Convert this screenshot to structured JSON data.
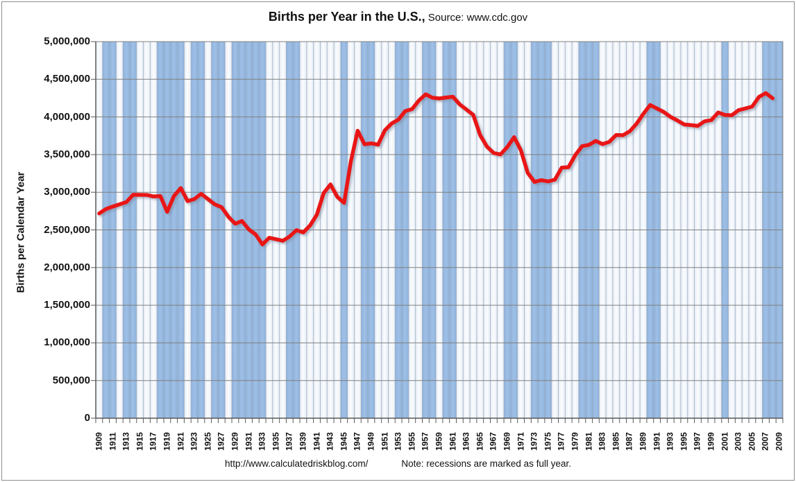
{
  "title": {
    "main": "Births per Year in the U.S.,",
    "source": " Source: www.cdc.gov"
  },
  "y_axis": {
    "title": "Births per Calendar Year",
    "tick_labels": [
      "5,000,000",
      "4,500,000",
      "4,000,000",
      "3,500,000",
      "3,000,000",
      "2,500,000",
      "2,000,000",
      "1,500,000",
      "1,000,000",
      "500,000",
      "0"
    ]
  },
  "footer": {
    "url": "http://www.calculatedriskblog.com/",
    "note": "Note: recessions are marked as full year."
  },
  "colors": {
    "line": "#e81414",
    "recession_band": "#9fc0e6",
    "recession_band_edge": "#8fb3dd",
    "cell_light": "#e7eef6",
    "cell_light_center": "#fafcfe",
    "vertical_gridline": "#98a6ba",
    "horizontal_gridline": "#7f7f7f",
    "axis": "#595959",
    "text": "#111111"
  },
  "chart_data": {
    "type": "line",
    "title": "Births per Year in the U.S., Source: www.cdc.gov",
    "xlabel": "",
    "ylabel": "Births per Calendar Year",
    "ylim": [
      0,
      5000000
    ],
    "y_tick_step": 500000,
    "x_axis_range": [
      1909,
      2009
    ],
    "grid": true,
    "legend": false,
    "x": [
      1909,
      1910,
      1911,
      1912,
      1913,
      1914,
      1915,
      1916,
      1917,
      1918,
      1919,
      1920,
      1921,
      1922,
      1923,
      1924,
      1925,
      1926,
      1927,
      1928,
      1929,
      1930,
      1931,
      1932,
      1933,
      1934,
      1935,
      1936,
      1937,
      1938,
      1939,
      1940,
      1941,
      1942,
      1943,
      1944,
      1945,
      1946,
      1947,
      1948,
      1949,
      1950,
      1951,
      1952,
      1953,
      1954,
      1955,
      1956,
      1957,
      1958,
      1959,
      1960,
      1961,
      1962,
      1963,
      1964,
      1965,
      1966,
      1967,
      1968,
      1969,
      1970,
      1971,
      1972,
      1973,
      1974,
      1975,
      1976,
      1977,
      1978,
      1979,
      1980,
      1981,
      1982,
      1983,
      1984,
      1985,
      1986,
      1987,
      1988,
      1989,
      1990,
      1991,
      1992,
      1993,
      1994,
      1995,
      1996,
      1997,
      1998,
      1999,
      2000,
      2001,
      2002,
      2003,
      2004,
      2005,
      2006,
      2007,
      2008
    ],
    "values": [
      2718000,
      2777000,
      2809000,
      2840000,
      2869000,
      2966000,
      2965000,
      2964000,
      2944000,
      2948000,
      2740000,
      2950000,
      3055000,
      2882000,
      2910000,
      2979000,
      2909000,
      2839000,
      2802000,
      2674000,
      2582000,
      2618000,
      2506000,
      2440000,
      2307000,
      2396000,
      2377000,
      2355000,
      2413000,
      2496000,
      2466000,
      2559000,
      2703000,
      2989000,
      3104000,
      2939000,
      2858000,
      3411000,
      3817000,
      3637000,
      3649000,
      3632000,
      3823000,
      3913000,
      3965000,
      4078000,
      4104000,
      4218000,
      4300000,
      4255000,
      4245000,
      4258000,
      4268000,
      4167000,
      4098000,
      4027000,
      3760000,
      3606000,
      3521000,
      3502000,
      3600000,
      3731000,
      3556000,
      3258000,
      3137000,
      3160000,
      3144000,
      3168000,
      3327000,
      3333000,
      3494000,
      3612000,
      3629000,
      3681000,
      3639000,
      3669000,
      3761000,
      3757000,
      3809000,
      3910000,
      4041000,
      4158000,
      4111000,
      4065000,
      4000000,
      3953000,
      3900000,
      3891000,
      3881000,
      3942000,
      3959000,
      4059000,
      4026000,
      4022000,
      4090000,
      4112000,
      4138000,
      4266000,
      4316000,
      4248000
    ],
    "x_tick_years": [
      1909,
      1911,
      1913,
      1915,
      1917,
      1919,
      1921,
      1923,
      1925,
      1927,
      1929,
      1931,
      1933,
      1935,
      1937,
      1939,
      1941,
      1943,
      1945,
      1947,
      1949,
      1951,
      1953,
      1955,
      1957,
      1959,
      1961,
      1963,
      1965,
      1967,
      1969,
      1971,
      1973,
      1975,
      1977,
      1979,
      1981,
      1983,
      1985,
      1987,
      1989,
      1991,
      1993,
      1995,
      1997,
      1999,
      2001,
      2003,
      2005,
      2007,
      2009
    ],
    "recession_years": [
      1910,
      1911,
      1913,
      1914,
      1918,
      1919,
      1920,
      1921,
      1923,
      1924,
      1926,
      1927,
      1929,
      1930,
      1931,
      1932,
      1933,
      1937,
      1938,
      1945,
      1948,
      1949,
      1953,
      1954,
      1957,
      1958,
      1960,
      1961,
      1969,
      1970,
      1973,
      1974,
      1975,
      1980,
      1981,
      1982,
      1990,
      1991,
      2001,
      2007,
      2008,
      2009
    ]
  }
}
